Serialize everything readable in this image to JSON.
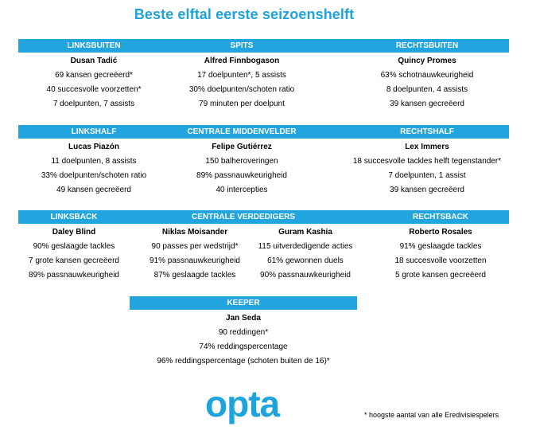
{
  "title": "Beste elftal eerste seizoenshelft",
  "row1": {
    "headers": [
      "LINKSBUITEN",
      "SPITS",
      "RECHTSBUITEN"
    ],
    "players": [
      {
        "name": "Dusan Tadić",
        "stats": [
          "69 kansen gecreëerd*",
          "40 succesvolle voorzetten*",
          "7 doelpunten, 7 assists"
        ]
      },
      {
        "name": "Alfred Finnbogason",
        "stats": [
          "17 doelpunten*, 5 assists",
          "30% doelpunten/schoten ratio",
          "79 minuten per doelpunt"
        ]
      },
      {
        "name": "Quincy Promes",
        "stats": [
          "63% schotnauwkeurigheid",
          "8 doelpunten, 4 assists",
          "39 kansen gecreëerd"
        ]
      }
    ]
  },
  "row2": {
    "headers": [
      "LINKSHALF",
      "CENTRALE MIDDENVELDER",
      "RECHTSHALF"
    ],
    "players": [
      {
        "name": "Lucas Piazón",
        "stats": [
          "11 doelpunten, 8 assists",
          "33% doelpunten/schoten ratio",
          "49 kansen gecreëerd"
        ]
      },
      {
        "name": "Felipe Gutiérrez",
        "stats": [
          "150 balheroveringen",
          "89% passnauwkeurigheid",
          "40 intercepties"
        ]
      },
      {
        "name": "Lex Immers",
        "stats": [
          "18 succesvolle tackles helft tegenstander*",
          "7 doelpunten, 1 assist",
          "39 kansen gecreëerd"
        ]
      }
    ]
  },
  "row3": {
    "headers": [
      "LINKSBACK",
      "CENTRALE VERDEDIGERS",
      "RECHTSBACK"
    ],
    "players": [
      {
        "name": "Daley Blind",
        "stats": [
          "90% geslaagde tackles",
          "7 grote kansen gecreëerd",
          "89% passnauwkeurigheid"
        ]
      },
      {
        "name": "Niklas Moisander",
        "stats": [
          "90 passes per wedstrijd*",
          "91% passnauwkeurigheid",
          "87% geslaagde tackles"
        ]
      },
      {
        "name": "Guram Kashia",
        "stats": [
          "115 uitverdedigende acties",
          "61% gewonnen duels",
          "90% passnauwkeurigheid"
        ]
      },
      {
        "name": "Roberto Rosales",
        "stats": [
          "91% geslaagde tackles",
          "18 succesvolle voorzetten",
          "5 grote kansen gecreëerd"
        ]
      }
    ]
  },
  "keeper": {
    "header": "KEEPER",
    "name": "Jan Seda",
    "stats": [
      "90 reddingen*",
      "74% reddingspercentage",
      "96% reddingspercentage (schoten buiten de 16)*"
    ]
  },
  "logo": "opta",
  "footnote": "* hoogste aantal van alle Eredivisiespelers",
  "colors": {
    "accent": "#22a5de"
  }
}
